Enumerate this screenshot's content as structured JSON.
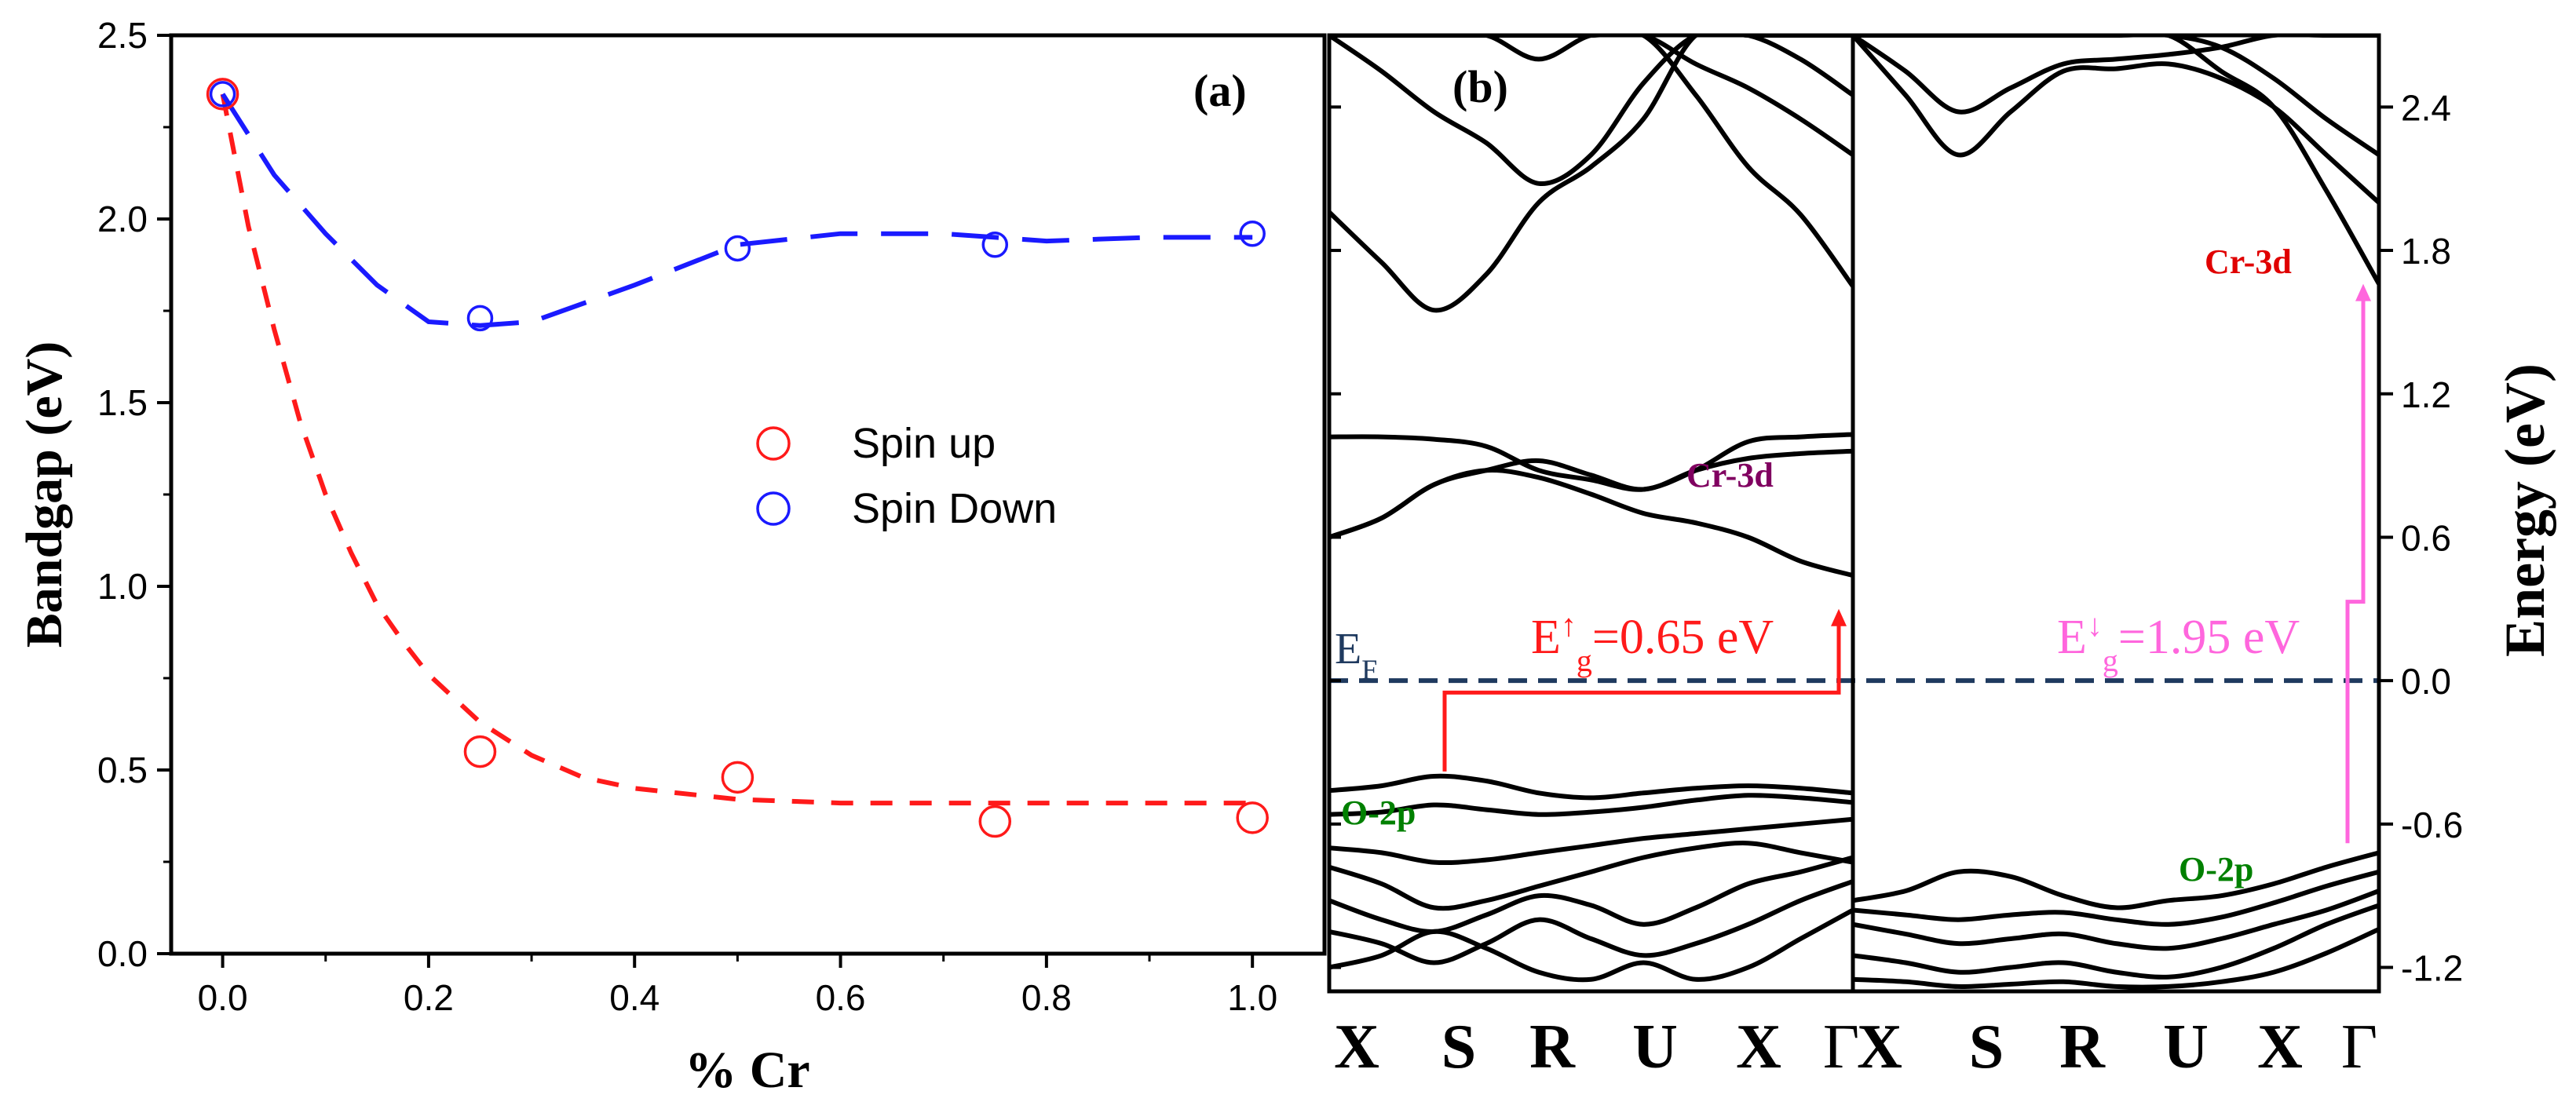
{
  "colors": {
    "spin_up": "#ff1a1a",
    "spin_down": "#1a1aff",
    "axis": "#000000",
    "band": "#000000",
    "fermi": "#1f3a5f",
    "cr_up_label": "#800060",
    "cr_down_label": "#e00000",
    "o2p_label": "#008000",
    "gap_up": "#ff1a1a",
    "gap_down": "#ff66dd"
  },
  "chart_data": [
    {
      "panel": "(a)",
      "type": "scatter",
      "xlabel": "% Cr",
      "ylabel": "Bandgap (eV)",
      "xlim": [
        -0.05,
        1.07
      ],
      "ylim": [
        0.0,
        2.5
      ],
      "xticks": [
        "0.0",
        "0.2",
        "0.4",
        "0.6",
        "0.8",
        "1.0"
      ],
      "xtick_values": [
        0.0,
        0.2,
        0.4,
        0.6,
        0.8,
        1.0
      ],
      "yticks": [
        "0.0",
        "0.5",
        "1.0",
        "1.5",
        "2.0",
        "2.5"
      ],
      "ytick_values": [
        0.0,
        0.5,
        1.0,
        1.5,
        2.0,
        2.5
      ],
      "legend_position": "center-right",
      "series": [
        {
          "name": "Spin up",
          "x": [
            0.0,
            0.25,
            0.5,
            0.75,
            1.0
          ],
          "y": [
            2.34,
            0.55,
            0.48,
            0.36,
            0.37
          ],
          "fit_x": [
            0.0,
            0.025,
            0.05,
            0.075,
            0.1,
            0.125,
            0.15,
            0.175,
            0.2,
            0.25,
            0.3,
            0.35,
            0.4,
            0.5,
            0.6,
            0.7,
            0.8,
            0.9,
            1.0
          ],
          "fit_y": [
            2.34,
            1.98,
            1.7,
            1.45,
            1.25,
            1.09,
            0.95,
            0.85,
            0.76,
            0.63,
            0.54,
            0.48,
            0.45,
            0.42,
            0.41,
            0.41,
            0.41,
            0.41,
            0.41
          ]
        },
        {
          "name": "Spin Down",
          "x": [
            0.0,
            0.25,
            0.5,
            0.75,
            1.0
          ],
          "y": [
            2.34,
            1.73,
            1.92,
            1.93,
            1.96
          ],
          "fit_x": [
            0.0,
            0.05,
            0.1,
            0.15,
            0.2,
            0.25,
            0.3,
            0.4,
            0.5,
            0.6,
            0.7,
            0.8,
            0.9,
            1.0
          ],
          "fit_y": [
            2.34,
            2.12,
            1.96,
            1.82,
            1.72,
            1.71,
            1.72,
            1.82,
            1.93,
            1.96,
            1.96,
            1.94,
            1.95,
            1.95
          ]
        }
      ]
    },
    {
      "panel": "(b)",
      "type": "line",
      "ylabel": "Energy (eV)",
      "ylim": [
        -1.3,
        2.7
      ],
      "yticks": [
        "-1.2",
        "-0.6",
        "0.0",
        "0.6",
        "1.2",
        "1.8",
        "2.4"
      ],
      "ytick_values": [
        -1.2,
        -0.6,
        0.0,
        0.6,
        1.2,
        1.8,
        2.4
      ],
      "kpath": [
        "X",
        "S",
        "R",
        "U",
        "X",
        "Γ"
      ],
      "fermi_label": "E",
      "fermi_sub": "F",
      "spin_up": {
        "gap_label_pre": "E",
        "gap_label_sup": "↑",
        "gap_label_sub": "g",
        "gap_label_post": "=0.65 eV",
        "gap_value": 0.65,
        "vbm": -0.38,
        "cbm": 0.3,
        "cr_label": "Cr-3d",
        "o_label": "O-2p",
        "bands": [
          [
            -0.46,
            -0.44,
            -0.4,
            -0.42,
            -0.47,
            -0.49,
            -0.47,
            -0.45,
            -0.44,
            -0.45,
            -0.47
          ],
          [
            -0.56,
            -0.55,
            -0.52,
            -0.54,
            -0.56,
            -0.55,
            -0.53,
            -0.5,
            -0.48,
            -0.49,
            -0.51
          ],
          [
            -0.7,
            -0.72,
            -0.76,
            -0.75,
            -0.72,
            -0.69,
            -0.66,
            -0.64,
            -0.62,
            -0.6,
            -0.58
          ],
          [
            -0.78,
            -0.85,
            -0.95,
            -0.92,
            -0.86,
            -0.8,
            -0.74,
            -0.7,
            -0.68,
            -0.72,
            -0.76
          ],
          [
            -0.92,
            -1.0,
            -1.05,
            -0.98,
            -0.9,
            -0.94,
            -1.02,
            -0.95,
            -0.85,
            -0.8,
            -0.74
          ],
          [
            -1.05,
            -1.1,
            -1.18,
            -1.1,
            -1.0,
            -1.08,
            -1.15,
            -1.1,
            -1.02,
            -0.92,
            -0.84
          ],
          [
            -1.2,
            -1.15,
            -1.05,
            -1.12,
            -1.22,
            -1.25,
            -1.18,
            -1.25,
            -1.2,
            -1.08,
            -0.96
          ],
          [
            1.02,
            1.02,
            1.01,
            0.98,
            0.88,
            0.84,
            0.8,
            0.88,
            1.0,
            1.02,
            1.03
          ],
          [
            0.6,
            0.68,
            0.82,
            0.88,
            0.92,
            0.86,
            0.8,
            0.88,
            0.93,
            0.95,
            0.96
          ],
          [
            0.6,
            0.68,
            0.82,
            0.88,
            0.85,
            0.78,
            0.7,
            0.66,
            0.6,
            0.5,
            0.44
          ],
          [
            1.96,
            1.75,
            1.55,
            1.7,
            2.0,
            2.15,
            2.35,
            2.7,
            2.7,
            2.7,
            2.7
          ],
          [
            2.7,
            2.55,
            2.38,
            2.25,
            2.08,
            2.2,
            2.5,
            2.7,
            2.7,
            2.6,
            2.45
          ],
          [
            2.7,
            2.7,
            2.7,
            2.7,
            2.6,
            2.7,
            2.7,
            2.45,
            2.15,
            1.95,
            1.65
          ],
          [
            2.7,
            2.7,
            2.7,
            2.7,
            2.7,
            2.7,
            2.7,
            2.58,
            2.48,
            2.35,
            2.2
          ]
        ]
      },
      "spin_down": {
        "gap_label_pre": "E",
        "gap_label_sup": "↓",
        "gap_label_sub": "g",
        "gap_label_post": "=1.95 eV",
        "gap_value": 1.95,
        "vbm": -0.68,
        "cbm": 1.66,
        "cr_label": "Cr-3d",
        "o_label": "O-2p",
        "bands": [
          [
            -0.92,
            -0.88,
            -0.8,
            -0.82,
            -0.9,
            -0.95,
            -0.92,
            -0.9,
            -0.85,
            -0.78,
            -0.72
          ],
          [
            -0.96,
            -0.98,
            -1.0,
            -0.98,
            -0.97,
            -1.0,
            -1.02,
            -0.99,
            -0.93,
            -0.86,
            -0.8
          ],
          [
            -1.02,
            -1.06,
            -1.1,
            -1.08,
            -1.06,
            -1.1,
            -1.12,
            -1.08,
            -1.02,
            -0.96,
            -0.88
          ],
          [
            -1.15,
            -1.18,
            -1.22,
            -1.2,
            -1.18,
            -1.22,
            -1.24,
            -1.2,
            -1.12,
            -1.02,
            -0.94
          ],
          [
            -1.25,
            -1.26,
            -1.28,
            -1.27,
            -1.26,
            -1.28,
            -1.28,
            -1.26,
            -1.22,
            -1.14,
            -1.04
          ],
          [
            2.7,
            2.55,
            2.38,
            2.48,
            2.58,
            2.6,
            2.62,
            2.65,
            2.7,
            2.7,
            2.7
          ],
          [
            2.7,
            2.45,
            2.2,
            2.38,
            2.55,
            2.56,
            2.58,
            2.52,
            2.4,
            2.2,
            2.0
          ],
          [
            2.7,
            2.7,
            2.7,
            2.7,
            2.7,
            2.7,
            2.7,
            2.55,
            2.4,
            2.05,
            1.66
          ],
          [
            2.7,
            2.7,
            2.7,
            2.7,
            2.7,
            2.7,
            2.7,
            2.65,
            2.52,
            2.35,
            2.2
          ]
        ]
      }
    }
  ],
  "legend": {
    "spin_up": "Spin up",
    "spin_down": "Spin Down"
  }
}
